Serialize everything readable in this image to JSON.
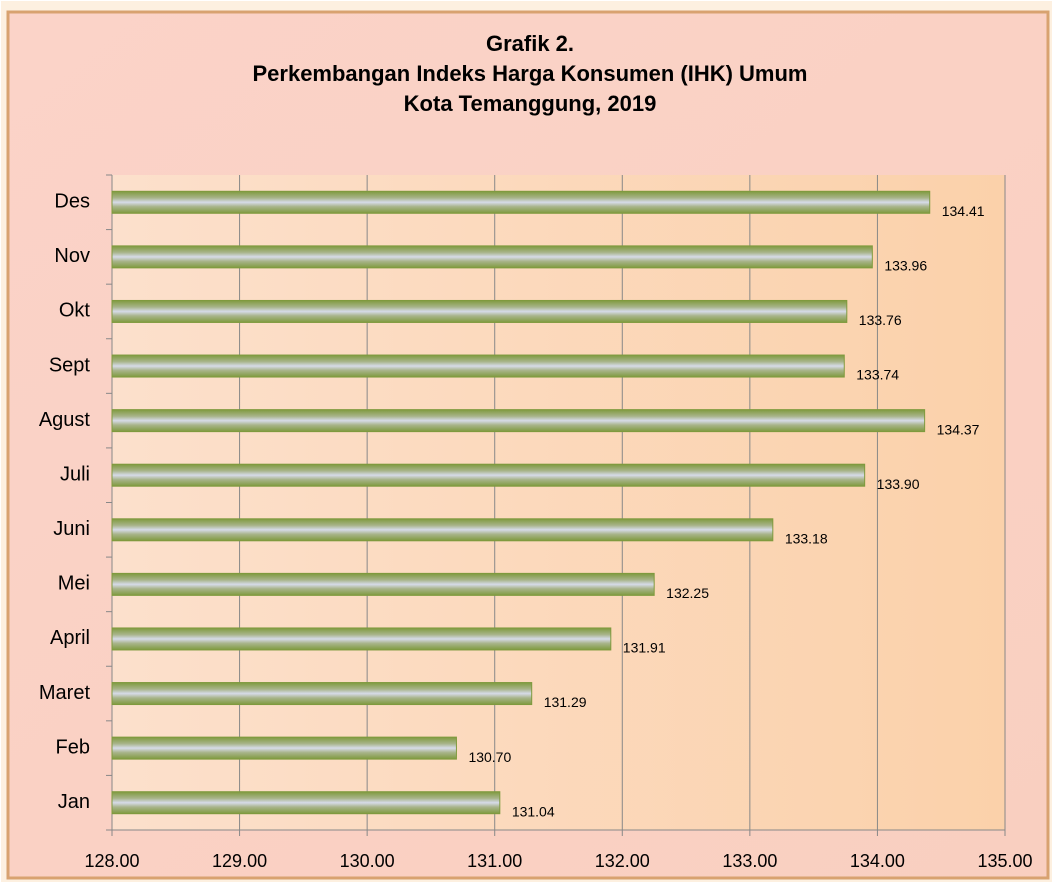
{
  "chart_data": {
    "type": "bar",
    "orientation": "horizontal",
    "title": [
      "Grafik 2.",
      "Perkembangan Indeks Harga Konsumen (IHK) Umum",
      "Kota Temanggung, 2019"
    ],
    "categories": [
      "Jan",
      "Feb",
      "Maret",
      "April",
      "Mei",
      "Juni",
      "Juli",
      "Agust",
      "Sept",
      "Okt",
      "Nov",
      "Des"
    ],
    "values": [
      131.04,
      130.7,
      131.29,
      131.91,
      132.25,
      133.18,
      133.9,
      134.37,
      133.74,
      133.76,
      133.96,
      134.41
    ],
    "value_labels": [
      "131.04",
      "130.70",
      "131.29",
      "131.91",
      "132.25",
      "133.18",
      "133.90",
      "134.37",
      "133.74",
      "133.76",
      "133.96",
      "134.41"
    ],
    "color": "#7f9a3e",
    "xlim": [
      128,
      135
    ],
    "xticks": [
      {
        "value": 128,
        "label": "128.00"
      },
      {
        "value": 129,
        "label": "129.00"
      },
      {
        "value": 130,
        "label": "130.00"
      },
      {
        "value": 131,
        "label": "131.00"
      },
      {
        "value": 132,
        "label": "132.00"
      },
      {
        "value": 133,
        "label": "133.00"
      },
      {
        "value": 134,
        "label": "134.00"
      },
      {
        "value": 135,
        "label": "135.00"
      }
    ],
    "grid": true
  }
}
